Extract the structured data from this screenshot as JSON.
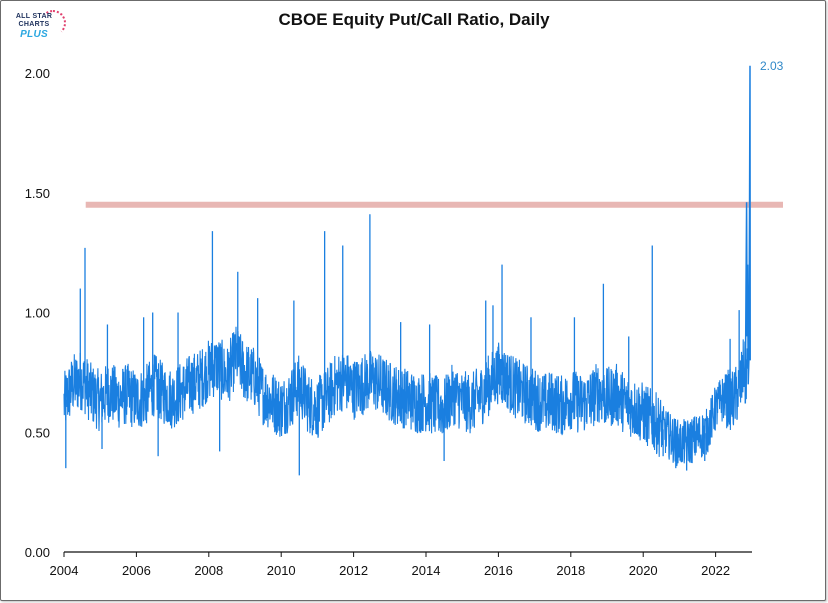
{
  "chart_data": {
    "type": "line",
    "title": "CBOE Equity Put/Call Ratio, Daily",
    "xlabel": "",
    "ylabel": "",
    "x_range": [
      2004.0,
      2022.95
    ],
    "ylim": [
      0,
      2.0
    ],
    "y_ticks": [
      "0.00",
      "0.50",
      "1.00",
      "1.50",
      "2.00"
    ],
    "x_ticks": [
      "2004",
      "2006",
      "2008",
      "2010",
      "2012",
      "2014",
      "2016",
      "2018",
      "2020",
      "2022"
    ],
    "grid": false,
    "legend": "none",
    "series": [
      {
        "color": "#1a7fe0",
        "x": [
          2004.0,
          2004.25,
          2004.5,
          2004.75,
          2005.0,
          2005.25,
          2005.5,
          2005.75,
          2006.0,
          2006.25,
          2006.5,
          2006.75,
          2007.0,
          2007.25,
          2007.5,
          2007.75,
          2008.0,
          2008.25,
          2008.5,
          2008.75,
          2009.0,
          2009.25,
          2009.5,
          2009.75,
          2010.0,
          2010.25,
          2010.5,
          2010.75,
          2011.0,
          2011.25,
          2011.5,
          2011.75,
          2012.0,
          2012.25,
          2012.5,
          2012.75,
          2013.0,
          2013.25,
          2013.5,
          2013.75,
          2014.0,
          2014.25,
          2014.5,
          2014.75,
          2015.0,
          2015.25,
          2015.5,
          2015.75,
          2016.0,
          2016.25,
          2016.5,
          2016.75,
          2017.0,
          2017.25,
          2017.5,
          2017.75,
          2018.0,
          2018.25,
          2018.5,
          2018.75,
          2019.0,
          2019.25,
          2019.5,
          2019.75,
          2020.0,
          2020.25,
          2020.5,
          2020.75,
          2021.0,
          2021.25,
          2021.5,
          2021.75,
          2022.0,
          2022.25,
          2022.5,
          2022.7,
          2022.8,
          2022.85,
          2022.9,
          2022.95
        ],
        "y": [
          0.62,
          0.7,
          0.72,
          0.66,
          0.63,
          0.67,
          0.64,
          0.66,
          0.63,
          0.65,
          0.7,
          0.66,
          0.64,
          0.67,
          0.7,
          0.72,
          0.76,
          0.78,
          0.73,
          0.82,
          0.75,
          0.73,
          0.66,
          0.63,
          0.6,
          0.64,
          0.7,
          0.62,
          0.6,
          0.64,
          0.7,
          0.72,
          0.68,
          0.7,
          0.72,
          0.7,
          0.67,
          0.65,
          0.64,
          0.62,
          0.63,
          0.61,
          0.6,
          0.66,
          0.63,
          0.62,
          0.65,
          0.7,
          0.75,
          0.72,
          0.68,
          0.66,
          0.64,
          0.62,
          0.63,
          0.61,
          0.64,
          0.62,
          0.63,
          0.67,
          0.64,
          0.66,
          0.62,
          0.6,
          0.58,
          0.55,
          0.52,
          0.48,
          0.45,
          0.46,
          0.48,
          0.5,
          0.6,
          0.65,
          0.63,
          0.7,
          0.8,
          1.46,
          0.75,
          2.03
        ],
        "spikes": [
          {
            "x": 2004.05,
            "y": 0.35
          },
          {
            "x": 2004.45,
            "y": 1.1
          },
          {
            "x": 2004.58,
            "y": 1.27
          },
          {
            "x": 2005.05,
            "y": 0.43
          },
          {
            "x": 2005.2,
            "y": 0.95
          },
          {
            "x": 2006.2,
            "y": 0.98
          },
          {
            "x": 2006.45,
            "y": 1.0
          },
          {
            "x": 2006.6,
            "y": 0.4
          },
          {
            "x": 2007.15,
            "y": 1.0
          },
          {
            "x": 2008.1,
            "y": 1.34
          },
          {
            "x": 2008.3,
            "y": 0.42
          },
          {
            "x": 2008.8,
            "y": 1.17
          },
          {
            "x": 2009.35,
            "y": 1.06
          },
          {
            "x": 2010.5,
            "y": 0.32
          },
          {
            "x": 2010.35,
            "y": 1.05
          },
          {
            "x": 2011.2,
            "y": 1.34
          },
          {
            "x": 2011.7,
            "y": 1.28
          },
          {
            "x": 2012.45,
            "y": 1.41
          },
          {
            "x": 2013.3,
            "y": 0.96
          },
          {
            "x": 2014.1,
            "y": 0.95
          },
          {
            "x": 2014.5,
            "y": 0.38
          },
          {
            "x": 2015.65,
            "y": 1.05
          },
          {
            "x": 2015.85,
            "y": 1.03
          },
          {
            "x": 2016.1,
            "y": 1.2
          },
          {
            "x": 2016.9,
            "y": 0.98
          },
          {
            "x": 2018.1,
            "y": 0.98
          },
          {
            "x": 2018.9,
            "y": 1.12
          },
          {
            "x": 2019.6,
            "y": 0.9
          },
          {
            "x": 2020.25,
            "y": 1.28
          },
          {
            "x": 2020.55,
            "y": 0.4
          },
          {
            "x": 2020.9,
            "y": 0.35
          },
          {
            "x": 2021.2,
            "y": 0.34
          },
          {
            "x": 2021.7,
            "y": 0.38
          },
          {
            "x": 2022.4,
            "y": 0.89
          },
          {
            "x": 2022.65,
            "y": 1.01
          }
        ]
      }
    ],
    "reference_line": {
      "y": 1.45,
      "x_start": 2004.6,
      "x_end": 2023.95,
      "color": "#e8b7b4"
    },
    "annotation": {
      "text": "2.03",
      "x": 2022.95,
      "y": 2.03,
      "color": "#2f88c8"
    }
  },
  "logo": {
    "line1": "ALL STAR",
    "line2": "CHARTS",
    "line3": "PLUS"
  }
}
